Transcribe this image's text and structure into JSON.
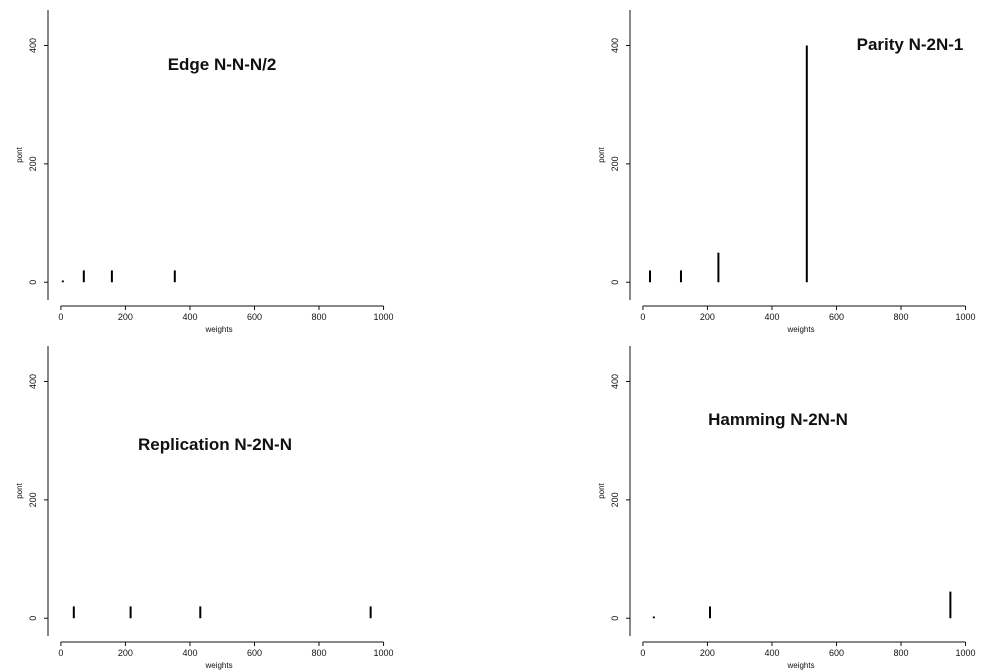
{
  "chart_data": [
    {
      "type": "spike",
      "title": "Edge N-N-N/2",
      "xlabel": "weights",
      "ylabel": "pont",
      "color": "#000000",
      "x": [
        6,
        71,
        158,
        353
      ],
      "values": [
        3,
        20,
        20,
        20
      ],
      "xlim": [
        -40,
        1020
      ],
      "ylim": [
        -30,
        460
      ],
      "xticks": [
        0,
        200,
        400,
        600,
        800,
        1000
      ],
      "yticks": [
        0,
        200,
        400
      ]
    },
    {
      "type": "spike",
      "title": "Parity N-2N-1",
      "xlabel": "weights",
      "ylabel": "pont",
      "color": "#000000",
      "x": [
        22,
        118,
        234,
        508
      ],
      "values": [
        20,
        20,
        50,
        400
      ],
      "xlim": [
        -40,
        1020
      ],
      "ylim": [
        -30,
        460
      ],
      "xticks": [
        0,
        200,
        400,
        600,
        800,
        1000
      ],
      "yticks": [
        0,
        200,
        400
      ]
    },
    {
      "type": "spike",
      "title": "Replication N-2N-N",
      "xlabel": "weights",
      "ylabel": "pont",
      "color": "#000000",
      "x": [
        40,
        216,
        432,
        960
      ],
      "values": [
        20,
        20,
        20,
        20
      ],
      "xlim": [
        -40,
        1020
      ],
      "ylim": [
        -30,
        460
      ],
      "xticks": [
        0,
        200,
        400,
        600,
        800,
        1000
      ],
      "yticks": [
        0,
        200,
        400
      ]
    },
    {
      "type": "spike",
      "title": "Hamming N-2N-N",
      "xlabel": "weights",
      "ylabel": "pont",
      "color": "#000000",
      "x": [
        34,
        208,
        953
      ],
      "values": [
        3,
        20,
        45
      ],
      "xlim": [
        -40,
        1020
      ],
      "ylim": [
        -30,
        460
      ],
      "xticks": [
        0,
        200,
        400,
        600,
        800,
        1000
      ],
      "yticks": [
        0,
        200,
        400
      ]
    }
  ]
}
